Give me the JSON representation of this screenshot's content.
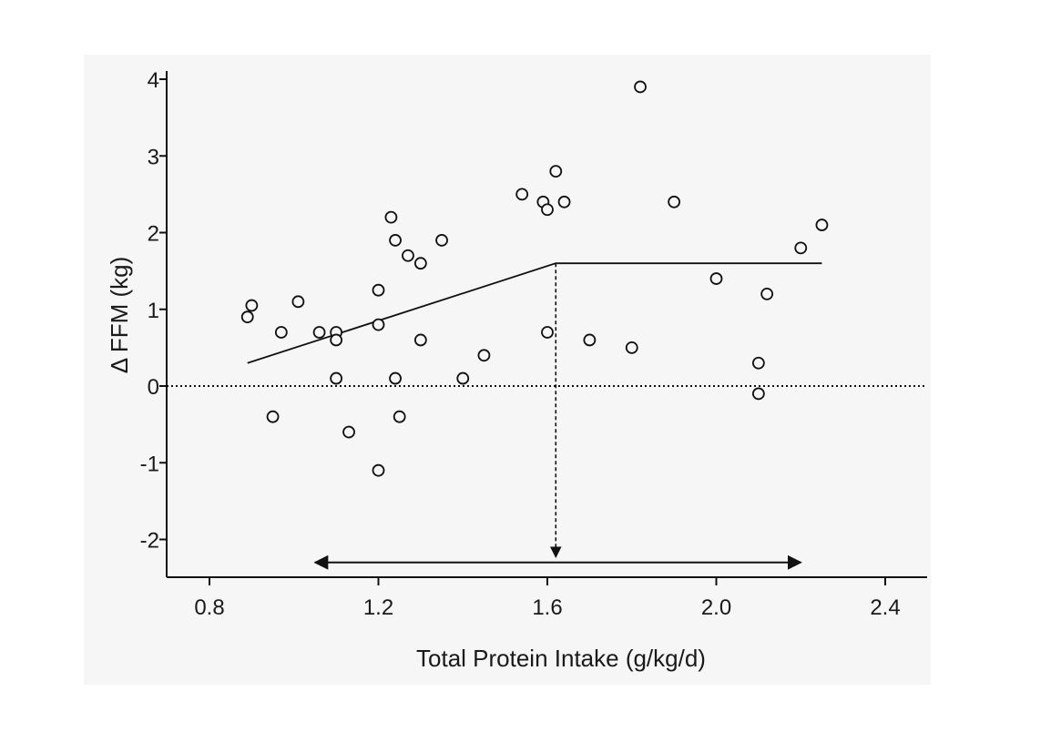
{
  "chart_data": {
    "type": "scatter",
    "title": "",
    "xlabel": "Total Protein Intake (g/kg/d)",
    "ylabel": "Δ FFM (kg)",
    "xlim": [
      0.7,
      2.5
    ],
    "ylim": [
      -2.5,
      4.1
    ],
    "x_ticks": [
      0.8,
      1.2,
      1.6,
      2.0,
      2.4
    ],
    "x_tick_labels": [
      "0.8",
      "1.2",
      "1.6",
      "2.0",
      "2.4"
    ],
    "y_ticks": [
      -2,
      -1,
      0,
      1,
      2,
      3,
      4
    ],
    "y_tick_labels": [
      "-2",
      "-1",
      "0",
      "1",
      "2",
      "3",
      "4"
    ],
    "grid": false,
    "points": [
      {
        "x": 0.89,
        "y": 0.9
      },
      {
        "x": 0.9,
        "y": 1.05
      },
      {
        "x": 0.97,
        "y": 0.7
      },
      {
        "x": 0.95,
        "y": -0.4
      },
      {
        "x": 1.01,
        "y": 1.1
      },
      {
        "x": 1.06,
        "y": 0.7
      },
      {
        "x": 1.1,
        "y": 0.7
      },
      {
        "x": 1.1,
        "y": 0.6
      },
      {
        "x": 1.1,
        "y": 0.1
      },
      {
        "x": 1.13,
        "y": -0.6
      },
      {
        "x": 1.2,
        "y": 1.25
      },
      {
        "x": 1.2,
        "y": 0.8
      },
      {
        "x": 1.2,
        "y": -1.1
      },
      {
        "x": 1.23,
        "y": 2.2
      },
      {
        "x": 1.24,
        "y": 1.9
      },
      {
        "x": 1.24,
        "y": 0.1
      },
      {
        "x": 1.25,
        "y": -0.4
      },
      {
        "x": 1.27,
        "y": 1.7
      },
      {
        "x": 1.3,
        "y": 1.6
      },
      {
        "x": 1.3,
        "y": 0.6
      },
      {
        "x": 1.35,
        "y": 1.9
      },
      {
        "x": 1.4,
        "y": 0.1
      },
      {
        "x": 1.45,
        "y": 0.4
      },
      {
        "x": 1.54,
        "y": 2.5
      },
      {
        "x": 1.59,
        "y": 2.4
      },
      {
        "x": 1.6,
        "y": 2.3
      },
      {
        "x": 1.6,
        "y": 0.7
      },
      {
        "x": 1.62,
        "y": 2.8
      },
      {
        "x": 1.64,
        "y": 2.4
      },
      {
        "x": 1.7,
        "y": 0.6
      },
      {
        "x": 1.8,
        "y": 0.5
      },
      {
        "x": 1.82,
        "y": 3.9
      },
      {
        "x": 1.9,
        "y": 2.4
      },
      {
        "x": 2.0,
        "y": 1.4
      },
      {
        "x": 2.1,
        "y": 0.3
      },
      {
        "x": 2.1,
        "y": -0.1
      },
      {
        "x": 2.12,
        "y": 1.2
      },
      {
        "x": 2.2,
        "y": 1.8
      },
      {
        "x": 2.25,
        "y": 2.1
      }
    ],
    "breakpoint_line": [
      {
        "x": 0.89,
        "y": 0.3
      },
      {
        "x": 1.62,
        "y": 1.6
      },
      {
        "x": 2.25,
        "y": 1.6
      }
    ],
    "zero_reference_y": 0,
    "breakpoint_drop": {
      "x": 1.62,
      "y_from": 1.6,
      "y_to": -2.3
    },
    "range_arrow": {
      "x_from": 1.05,
      "x_to": 2.2,
      "y": -2.3
    }
  }
}
